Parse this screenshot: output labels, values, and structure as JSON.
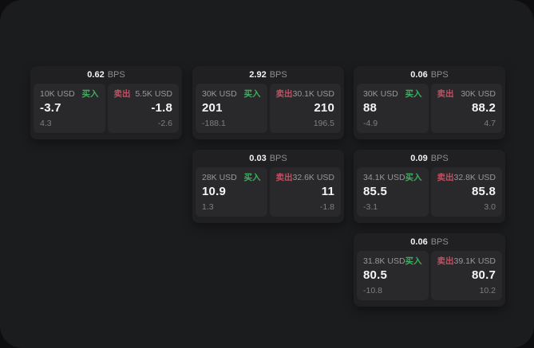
{
  "labels": {
    "bps_unit": "BPS",
    "buy": "买入",
    "sell": "卖出"
  },
  "colors": {
    "backdrop": "#0e0e10",
    "page_surface": "#1b1c1e",
    "card_bg": "#202023",
    "panel_bg": "#29292c",
    "buy_green": "#3fae5e",
    "sell_red": "#c44f63",
    "text_primary": "#f5f5f6",
    "text_secondary": "#8d8d91"
  },
  "cards": [
    {
      "bps": "0.62",
      "buy": {
        "amount": "10K USD",
        "price": "-3.7",
        "delta": "4.3"
      },
      "sell": {
        "amount": "5.5K USD",
        "price": "-1.8",
        "delta": "-2.6"
      }
    },
    {
      "bps": "2.92",
      "buy": {
        "amount": "30K USD",
        "price": "201",
        "delta": "-188.1"
      },
      "sell": {
        "amount": "30.1K USD",
        "price": "210",
        "delta": "196.5"
      }
    },
    {
      "bps": "0.06",
      "buy": {
        "amount": "30K USD",
        "price": "88",
        "delta": "-4.9"
      },
      "sell": {
        "amount": "30K USD",
        "price": "88.2",
        "delta": "4.7"
      }
    },
    {
      "bps": "0.03",
      "buy": {
        "amount": "28K USD",
        "price": "10.9",
        "delta": "1.3"
      },
      "sell": {
        "amount": "32.6K USD",
        "price": "11",
        "delta": "-1.8"
      }
    },
    {
      "bps": "0.09",
      "buy": {
        "amount": "34.1K USD",
        "price": "85.5",
        "delta": "-3.1"
      },
      "sell": {
        "amount": "32.8K USD",
        "price": "85.8",
        "delta": "3.0"
      }
    },
    {
      "bps": "0.06",
      "buy": {
        "amount": "31.8K USD",
        "price": "80.5",
        "delta": "-10.8"
      },
      "sell": {
        "amount": "39.1K USD",
        "price": "80.7",
        "delta": "10.2"
      }
    }
  ]
}
